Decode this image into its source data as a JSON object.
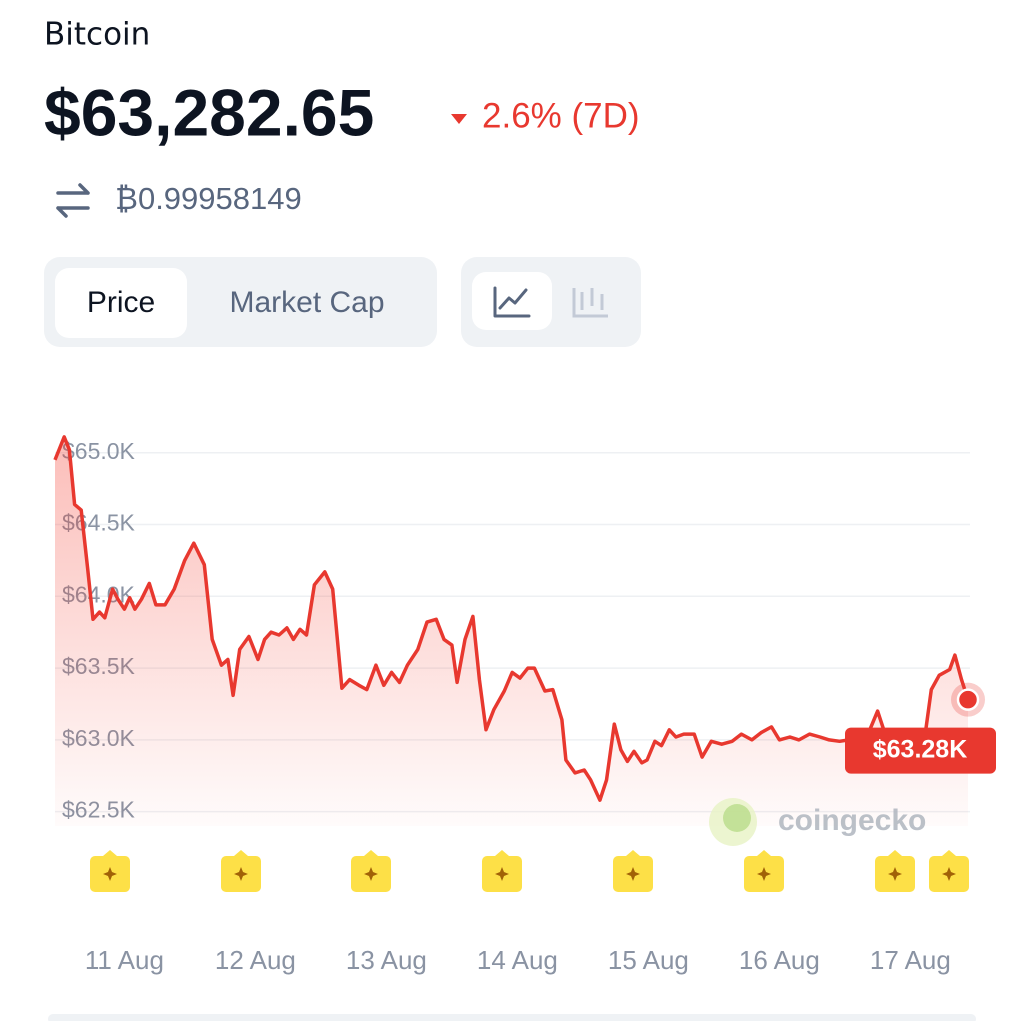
{
  "header": {
    "coin": "Bitcoin",
    "price": "$63,282.65",
    "change": "2.6% (7D)",
    "btc_price": "₿0.99958149"
  },
  "tabs": [
    "Price",
    "Market Cap"
  ],
  "chart_data": {
    "type": "line",
    "x": [
      10.47,
      10.54,
      10.58,
      10.62,
      10.67,
      10.72,
      10.76,
      10.81,
      10.85,
      10.91,
      10.95,
      11.0,
      11.04,
      11.08,
      11.13,
      11.19,
      11.24,
      11.31,
      11.38,
      11.46,
      11.53,
      11.61,
      11.67,
      11.74,
      11.79,
      11.83,
      11.88,
      11.95,
      12.02,
      12.07,
      12.12,
      12.18,
      12.24,
      12.29,
      12.34,
      12.39,
      12.45,
      12.53,
      12.59,
      12.66,
      12.72,
      12.79,
      12.85,
      12.92,
      12.98,
      13.04,
      13.1,
      13.16,
      13.24,
      13.31,
      13.38,
      13.44,
      13.5,
      13.54,
      13.6,
      13.66,
      13.71,
      13.76,
      13.82,
      13.9,
      13.96,
      14.02,
      14.08,
      14.13,
      14.21,
      14.27,
      14.34,
      14.37,
      14.44,
      14.51,
      14.56,
      14.63,
      14.68,
      14.74,
      14.79,
      14.84,
      14.89,
      14.95,
      14.99,
      15.05,
      15.1,
      15.16,
      15.21,
      15.27,
      15.35,
      15.41,
      15.48,
      15.56,
      15.64,
      15.71,
      15.79,
      15.86,
      15.94,
      16.0,
      16.08,
      16.15,
      16.23,
      16.31,
      16.38,
      16.46,
      16.53,
      16.61,
      16.69,
      16.75,
      16.8,
      16.86,
      16.92,
      16.98,
      17.03,
      17.11,
      17.16,
      17.22,
      17.3,
      17.34,
      17.39,
      17.44
    ],
    "series": [
      {
        "color": "#e8382f",
        "values": [
          64950,
          65110,
          65020,
          64640,
          64600,
          64190,
          63840,
          63890,
          63850,
          64050,
          63980,
          63910,
          63990,
          63910,
          63980,
          64090,
          63940,
          63940,
          64050,
          64250,
          64370,
          64220,
          63700,
          63520,
          63560,
          63310,
          63630,
          63720,
          63560,
          63700,
          63750,
          63730,
          63780,
          63700,
          63770,
          63730,
          64080,
          64170,
          64050,
          63360,
          63420,
          63380,
          63350,
          63520,
          63380,
          63470,
          63400,
          63520,
          63630,
          63820,
          63840,
          63700,
          63660,
          63400,
          63700,
          63860,
          63420,
          63070,
          63210,
          63340,
          63470,
          63430,
          63500,
          63500,
          63340,
          63350,
          63140,
          62860,
          62770,
          62790,
          62720,
          62580,
          62720,
          63110,
          62930,
          62850,
          62920,
          62840,
          62860,
          62990,
          62960,
          63070,
          63020,
          63040,
          63040,
          62880,
          62990,
          62970,
          62990,
          63040,
          63000,
          63050,
          63090,
          63000,
          63020,
          63000,
          63040,
          63020,
          63000,
          62990,
          63000,
          62990,
          63070,
          63200,
          63060,
          62970,
          63020,
          62830,
          62950,
          63020,
          63350,
          63450,
          63490,
          63590,
          63420,
          63280
        ]
      }
    ],
    "last_label": "$63.28K",
    "xlim": [
      10.47,
      17.44
    ],
    "xticks": [
      {
        "value": 11,
        "label": "11 Aug"
      },
      {
        "value": 12,
        "label": "12 Aug"
      },
      {
        "value": 13,
        "label": "13 Aug"
      },
      {
        "value": 14,
        "label": "14 Aug"
      },
      {
        "value": 15,
        "label": "15 Aug"
      },
      {
        "value": 16,
        "label": "16 Aug"
      },
      {
        "value": 17,
        "label": "17 Aug"
      }
    ],
    "ylim": [
      62400,
      65200
    ],
    "yticks": [
      {
        "value": 62500,
        "label": "$62.5K"
      },
      {
        "value": 63000,
        "label": "$63.0K"
      },
      {
        "value": 63500,
        "label": "$63.5K"
      },
      {
        "value": 64000,
        "label": "$64.0K"
      },
      {
        "value": 64500,
        "label": "$64.5K"
      },
      {
        "value": 65000,
        "label": "$65.0K"
      }
    ],
    "grid": true,
    "watermark": "coingecko"
  }
}
